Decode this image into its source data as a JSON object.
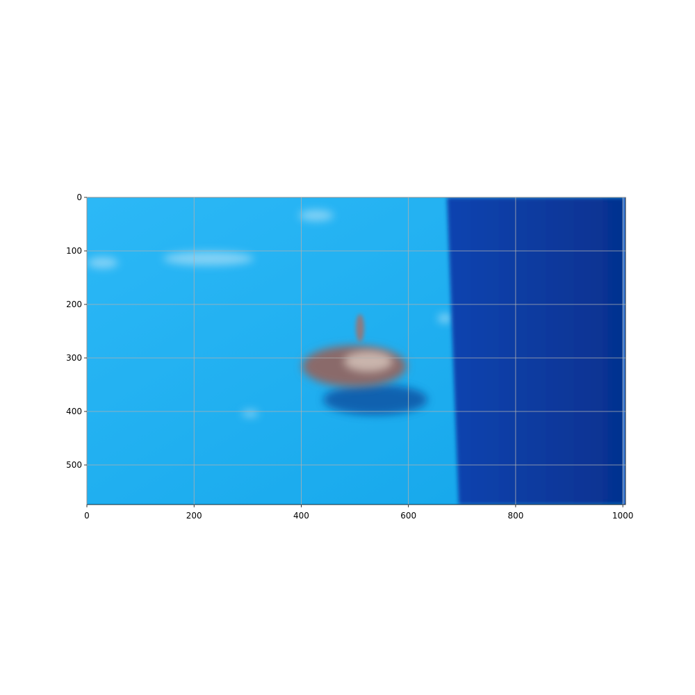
{
  "chart_data": {
    "type": "image",
    "xlim": [
      0,
      1005
    ],
    "ylim": [
      574,
      0
    ],
    "xticks": [
      0,
      200,
      400,
      600,
      800,
      1000
    ],
    "yticks": [
      0,
      100,
      200,
      300,
      400,
      500
    ],
    "grid": true
  }
}
